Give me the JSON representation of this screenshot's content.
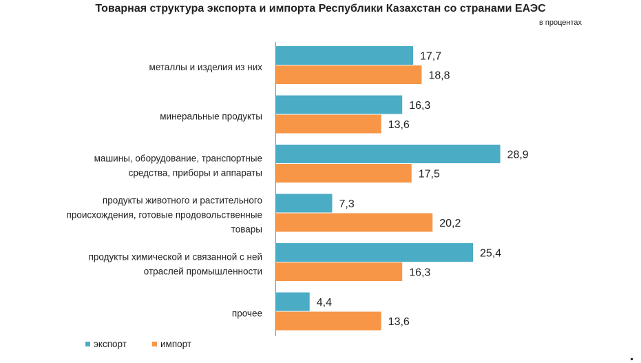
{
  "chart_data": {
    "type": "bar",
    "orientation": "horizontal",
    "title": "Товарная структура экспорта и импорта Республики Казахстан со странами ЕАЭС",
    "subtitle": "в процентах",
    "categories": [
      [
        "металлы и изделия из них"
      ],
      [
        "минеральные продукты"
      ],
      [
        "машины, оборудование, транспортные",
        "средства, приборы и аппараты"
      ],
      [
        "продукты животного и растительного",
        "происхождения, готовые продовольственные",
        "товары"
      ],
      [
        "продукты химической и связанной с ней",
        "отраслей промышленности"
      ],
      [
        "прочее"
      ]
    ],
    "series": [
      {
        "name": "экспорт",
        "color": "#4bacc6",
        "values": [
          17.7,
          16.3,
          28.9,
          7.3,
          25.4,
          4.4
        ],
        "labels": [
          "17,7",
          "16,3",
          "28,9",
          "7,3",
          "25,4",
          "4,4"
        ]
      },
      {
        "name": "импорт",
        "color": "#f79646",
        "values": [
          18.8,
          13.6,
          17.5,
          20.2,
          16.3,
          13.6
        ],
        "labels": [
          "18,8",
          "13,6",
          "17,5",
          "20,2",
          "16,3",
          "13,6"
        ]
      }
    ],
    "xlim": [
      0,
      30
    ],
    "legend_position": "bottom-left",
    "grid": false
  }
}
